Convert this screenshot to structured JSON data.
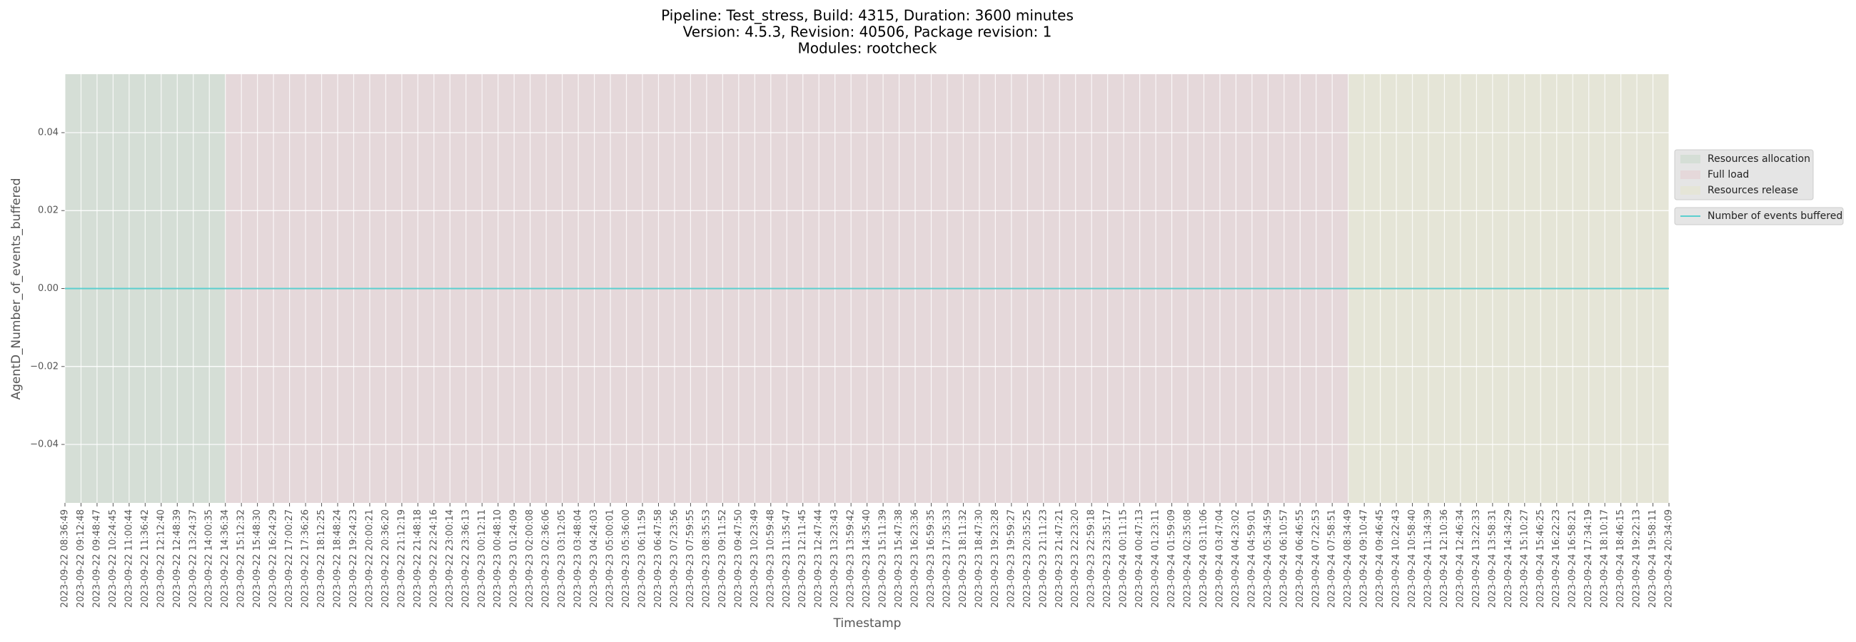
{
  "chart_data": {
    "type": "line",
    "title": [
      "Pipeline: Test_stress, Build: 4315, Duration: 3600 minutes",
      "Version: 4.5.3, Revision: 40506, Package revision: 1",
      "Modules: rootcheck"
    ],
    "xlabel": "Timestamp",
    "ylabel": "AgentD_Number_of_events_buffered",
    "x": [
      "2023-09-22 08:36:49",
      "2023-09-22 09:12:48",
      "2023-09-22 09:48:47",
      "2023-09-22 10:24:45",
      "2023-09-22 11:00:44",
      "2023-09-22 11:36:42",
      "2023-09-22 12:12:40",
      "2023-09-22 12:48:39",
      "2023-09-22 13:24:37",
      "2023-09-22 14:00:35",
      "2023-09-22 14:36:34",
      "2023-09-22 15:12:32",
      "2023-09-22 15:48:30",
      "2023-09-22 16:24:29",
      "2023-09-22 17:00:27",
      "2023-09-22 17:36:26",
      "2023-09-22 18:12:25",
      "2023-09-22 18:48:24",
      "2023-09-22 19:24:23",
      "2023-09-22 20:00:21",
      "2023-09-22 20:36:20",
      "2023-09-22 21:12:19",
      "2023-09-22 21:48:18",
      "2023-09-22 22:24:16",
      "2023-09-22 23:00:14",
      "2023-09-22 23:36:13",
      "2023-09-23 00:12:11",
      "2023-09-23 00:48:10",
      "2023-09-23 01:24:09",
      "2023-09-23 02:00:08",
      "2023-09-23 02:36:06",
      "2023-09-23 03:12:05",
      "2023-09-23 03:48:04",
      "2023-09-23 04:24:03",
      "2023-09-23 05:00:01",
      "2023-09-23 05:36:00",
      "2023-09-23 06:11:59",
      "2023-09-23 06:47:58",
      "2023-09-23 07:23:56",
      "2023-09-23 07:59:55",
      "2023-09-23 08:35:53",
      "2023-09-23 09:11:52",
      "2023-09-23 09:47:50",
      "2023-09-23 10:23:49",
      "2023-09-23 10:59:48",
      "2023-09-23 11:35:47",
      "2023-09-23 12:11:45",
      "2023-09-23 12:47:44",
      "2023-09-23 13:23:43",
      "2023-09-23 13:59:42",
      "2023-09-23 14:35:40",
      "2023-09-23 15:11:39",
      "2023-09-23 15:47:38",
      "2023-09-23 16:23:36",
      "2023-09-23 16:59:35",
      "2023-09-23 17:35:33",
      "2023-09-23 18:11:32",
      "2023-09-23 18:47:30",
      "2023-09-23 19:23:28",
      "2023-09-23 19:59:27",
      "2023-09-23 20:35:25",
      "2023-09-23 21:11:23",
      "2023-09-23 21:47:21",
      "2023-09-23 22:23:20",
      "2023-09-23 22:59:18",
      "2023-09-23 23:35:17",
      "2023-09-24 00:11:15",
      "2023-09-24 00:47:13",
      "2023-09-24 01:23:11",
      "2023-09-24 01:59:09",
      "2023-09-24 02:35:08",
      "2023-09-24 03:11:06",
      "2023-09-24 03:47:04",
      "2023-09-24 04:23:02",
      "2023-09-24 04:59:01",
      "2023-09-24 05:34:59",
      "2023-09-24 06:10:57",
      "2023-09-24 06:46:55",
      "2023-09-24 07:22:53",
      "2023-09-24 07:58:51",
      "2023-09-24 08:34:49",
      "2023-09-24 09:10:47",
      "2023-09-24 09:46:45",
      "2023-09-24 10:22:43",
      "2023-09-24 10:58:40",
      "2023-09-24 11:34:39",
      "2023-09-24 12:10:36",
      "2023-09-24 12:46:34",
      "2023-09-24 13:22:33",
      "2023-09-24 13:58:31",
      "2023-09-24 14:34:29",
      "2023-09-24 15:10:27",
      "2023-09-24 15:46:25",
      "2023-09-24 16:22:23",
      "2023-09-24 16:58:21",
      "2023-09-24 17:34:19",
      "2023-09-24 18:10:17",
      "2023-09-24 18:46:15",
      "2023-09-24 19:22:13",
      "2023-09-24 19:58:11",
      "2023-09-24 20:34:09"
    ],
    "xlim": [
      "2023-09-22 08:36:49",
      "2023-09-24 20:34:09"
    ],
    "series": [
      {
        "name": "Number of events buffered",
        "color": "#5ccfcf",
        "values": [
          0,
          0,
          0,
          0,
          0,
          0,
          0,
          0,
          0,
          0,
          0,
          0,
          0,
          0,
          0,
          0,
          0,
          0,
          0,
          0,
          0,
          0,
          0,
          0,
          0,
          0,
          0,
          0,
          0,
          0,
          0,
          0,
          0,
          0,
          0,
          0,
          0,
          0,
          0,
          0,
          0,
          0,
          0,
          0,
          0,
          0,
          0,
          0,
          0,
          0,
          0,
          0,
          0,
          0,
          0,
          0,
          0,
          0,
          0,
          0,
          0,
          0,
          0,
          0,
          0,
          0,
          0,
          0,
          0,
          0,
          0,
          0,
          0,
          0,
          0,
          0,
          0,
          0,
          0,
          0,
          0,
          0,
          0,
          0,
          0,
          0,
          0,
          0,
          0,
          0,
          0,
          0,
          0,
          0,
          0,
          0,
          0,
          0,
          0,
          0,
          0
        ]
      }
    ],
    "regions": [
      {
        "name": "Resources allocation",
        "color": "#d5ded6",
        "x": [
          "2023-09-22 08:36:49",
          "2023-09-22 14:36:34"
        ]
      },
      {
        "name": "Full load",
        "color": "#e5d8da",
        "x": [
          "2023-09-22 14:36:34",
          "2023-09-24 08:34:49"
        ]
      },
      {
        "name": "Resources release",
        "color": "#e5e5d7",
        "x": [
          "2023-09-24 08:34:49",
          "2023-09-24 20:34:09"
        ]
      }
    ],
    "ylim": [
      -0.055,
      0.055
    ],
    "yticks": [
      {
        "value": -0.04,
        "label": "−0.04"
      },
      {
        "value": -0.02,
        "label": "−0.02"
      },
      {
        "value": 0,
        "label": "0.00"
      },
      0.02,
      0.04
    ],
    "grid": true,
    "legend": "right"
  }
}
